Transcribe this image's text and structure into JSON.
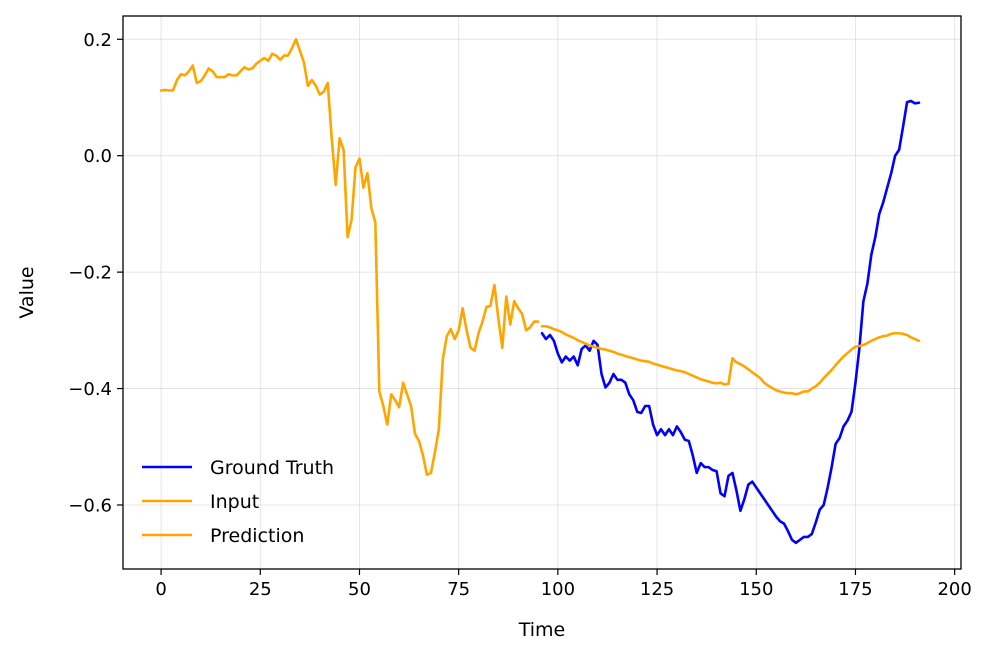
{
  "chart_data": {
    "type": "line",
    "title": "",
    "xlabel": "Time",
    "ylabel": "Value",
    "xlim": [
      -9.6,
      201.6
    ],
    "ylim": [
      -0.71,
      0.24
    ],
    "x_ticks": [
      0,
      25,
      50,
      75,
      100,
      125,
      150,
      175,
      200
    ],
    "y_ticks": [
      -0.6,
      -0.4,
      -0.2,
      0.0,
      0.2
    ],
    "x_tick_labels": [
      "0",
      "25",
      "50",
      "75",
      "100",
      "125",
      "150",
      "175",
      "200"
    ],
    "y_tick_labels": [
      "−0.6",
      "−0.4",
      "−0.2",
      "0.0",
      "0.2"
    ],
    "grid": true,
    "legend_position": "lower-left",
    "series": [
      {
        "name": "Ground Truth",
        "color": "#0000ff",
        "x": [
          96,
          97,
          98,
          99,
          100,
          101,
          102,
          103,
          104,
          105,
          106,
          107,
          108,
          109,
          110,
          111,
          112,
          113,
          114,
          115,
          116,
          117,
          118,
          119,
          120,
          121,
          122,
          123,
          124,
          125,
          126,
          127,
          128,
          129,
          130,
          131,
          132,
          133,
          134,
          135,
          136,
          137,
          138,
          139,
          140,
          141,
          142,
          143,
          144,
          145,
          146,
          147,
          148,
          149,
          150,
          151,
          152,
          153,
          154,
          155,
          156,
          157,
          158,
          159,
          160,
          161,
          162,
          163,
          164,
          165,
          166,
          167,
          168,
          169,
          170,
          171,
          172,
          173,
          174,
          175,
          176,
          177,
          178,
          179,
          180,
          181,
          182,
          183,
          184,
          185,
          186,
          187,
          188,
          189,
          190,
          191
        ],
        "y": [
          -0.305,
          -0.315,
          -0.308,
          -0.318,
          -0.34,
          -0.355,
          -0.345,
          -0.352,
          -0.345,
          -0.36,
          -0.332,
          -0.326,
          -0.335,
          -0.318,
          -0.325,
          -0.375,
          -0.398,
          -0.39,
          -0.375,
          -0.385,
          -0.385,
          -0.39,
          -0.41,
          -0.42,
          -0.44,
          -0.442,
          -0.43,
          -0.43,
          -0.462,
          -0.48,
          -0.47,
          -0.48,
          -0.47,
          -0.48,
          -0.465,
          -0.475,
          -0.488,
          -0.49,
          -0.515,
          -0.545,
          -0.528,
          -0.535,
          -0.535,
          -0.54,
          -0.542,
          -0.58,
          -0.585,
          -0.55,
          -0.545,
          -0.575,
          -0.61,
          -0.59,
          -0.565,
          -0.56,
          -0.57,
          -0.58,
          -0.59,
          -0.6,
          -0.61,
          -0.62,
          -0.628,
          -0.632,
          -0.645,
          -0.66,
          -0.665,
          -0.66,
          -0.655,
          -0.655,
          -0.65,
          -0.63,
          -0.608,
          -0.6,
          -0.57,
          -0.535,
          -0.495,
          -0.485,
          -0.465,
          -0.455,
          -0.44,
          -0.39,
          -0.33,
          -0.25,
          -0.22,
          -0.17,
          -0.14,
          -0.1,
          -0.08,
          -0.055,
          -0.03,
          0.0,
          0.01,
          0.05,
          0.092,
          0.094,
          0.09,
          0.091
        ]
      },
      {
        "name": "Input",
        "color": "#ffa500",
        "x": [
          0,
          1,
          2,
          3,
          4,
          5,
          6,
          7,
          8,
          9,
          10,
          11,
          12,
          13,
          14,
          15,
          16,
          17,
          18,
          19,
          20,
          21,
          22,
          23,
          24,
          25,
          26,
          27,
          28,
          29,
          30,
          31,
          32,
          33,
          34,
          35,
          36,
          37,
          38,
          39,
          40,
          41,
          42,
          43,
          44,
          45,
          46,
          47,
          48,
          49,
          50,
          51,
          52,
          53,
          54,
          55,
          56,
          57,
          58,
          59,
          60,
          61,
          62,
          63,
          64,
          65,
          66,
          67,
          68,
          69,
          70,
          71,
          72,
          73,
          74,
          75,
          76,
          77,
          78,
          79,
          80,
          81,
          82,
          83,
          84,
          85,
          86,
          87,
          88,
          89,
          90,
          91,
          92,
          93,
          94,
          95
        ],
        "y": [
          0.112,
          0.113,
          0.112,
          0.112,
          0.13,
          0.14,
          0.138,
          0.145,
          0.155,
          0.125,
          0.128,
          0.138,
          0.15,
          0.145,
          0.135,
          0.135,
          0.135,
          0.14,
          0.138,
          0.138,
          0.145,
          0.152,
          0.148,
          0.15,
          0.158,
          0.163,
          0.168,
          0.163,
          0.175,
          0.172,
          0.165,
          0.172,
          0.172,
          0.185,
          0.2,
          0.18,
          0.16,
          0.12,
          0.13,
          0.12,
          0.105,
          0.11,
          0.125,
          0.03,
          -0.05,
          0.03,
          0.01,
          -0.14,
          -0.11,
          -0.02,
          -0.005,
          -0.055,
          -0.03,
          -0.09,
          -0.115,
          -0.405,
          -0.43,
          -0.462,
          -0.41,
          -0.42,
          -0.432,
          -0.39,
          -0.41,
          -0.43,
          -0.478,
          -0.49,
          -0.515,
          -0.548,
          -0.545,
          -0.51,
          -0.47,
          -0.35,
          -0.31,
          -0.298,
          -0.315,
          -0.3,
          -0.262,
          -0.3,
          -0.33,
          -0.335,
          -0.305,
          -0.285,
          -0.26,
          -0.258,
          -0.222,
          -0.28,
          -0.33,
          -0.242,
          -0.29,
          -0.25,
          -0.262,
          -0.272,
          -0.3,
          -0.295,
          -0.285,
          -0.285
        ]
      },
      {
        "name": "Prediction",
        "color": "#ffa500",
        "x": [
          96,
          97,
          98,
          99,
          100,
          101,
          102,
          103,
          104,
          105,
          106,
          107,
          108,
          109,
          110,
          111,
          112,
          113,
          114,
          115,
          116,
          117,
          118,
          119,
          120,
          121,
          122,
          123,
          124,
          125,
          126,
          127,
          128,
          129,
          130,
          131,
          132,
          133,
          134,
          135,
          136,
          137,
          138,
          139,
          140,
          141,
          142,
          143,
          144,
          145,
          146,
          147,
          148,
          149,
          150,
          151,
          152,
          153,
          154,
          155,
          156,
          157,
          158,
          159,
          160,
          161,
          162,
          163,
          164,
          165,
          166,
          167,
          168,
          169,
          170,
          171,
          172,
          173,
          174,
          175,
          176,
          177,
          178,
          179,
          180,
          181,
          182,
          183,
          184,
          185,
          186,
          187,
          188,
          189,
          190,
          191
        ],
        "y": [
          -0.293,
          -0.293,
          -0.295,
          -0.298,
          -0.3,
          -0.303,
          -0.307,
          -0.31,
          -0.313,
          -0.317,
          -0.32,
          -0.323,
          -0.326,
          -0.328,
          -0.33,
          -0.332,
          -0.333,
          -0.335,
          -0.337,
          -0.34,
          -0.342,
          -0.344,
          -0.346,
          -0.348,
          -0.35,
          -0.352,
          -0.353,
          -0.354,
          -0.357,
          -0.359,
          -0.361,
          -0.363,
          -0.365,
          -0.367,
          -0.369,
          -0.37,
          -0.372,
          -0.375,
          -0.378,
          -0.381,
          -0.384,
          -0.386,
          -0.388,
          -0.39,
          -0.391,
          -0.39,
          -0.393,
          -0.392,
          -0.348,
          -0.355,
          -0.358,
          -0.362,
          -0.367,
          -0.372,
          -0.377,
          -0.382,
          -0.39,
          -0.395,
          -0.399,
          -0.403,
          -0.405,
          -0.407,
          -0.408,
          -0.408,
          -0.41,
          -0.408,
          -0.405,
          -0.405,
          -0.4,
          -0.396,
          -0.39,
          -0.382,
          -0.375,
          -0.368,
          -0.36,
          -0.352,
          -0.345,
          -0.339,
          -0.333,
          -0.328,
          -0.327,
          -0.325,
          -0.322,
          -0.318,
          -0.315,
          -0.312,
          -0.31,
          -0.309,
          -0.306,
          -0.305,
          -0.305,
          -0.306,
          -0.308,
          -0.312,
          -0.315,
          -0.318
        ]
      }
    ]
  }
}
